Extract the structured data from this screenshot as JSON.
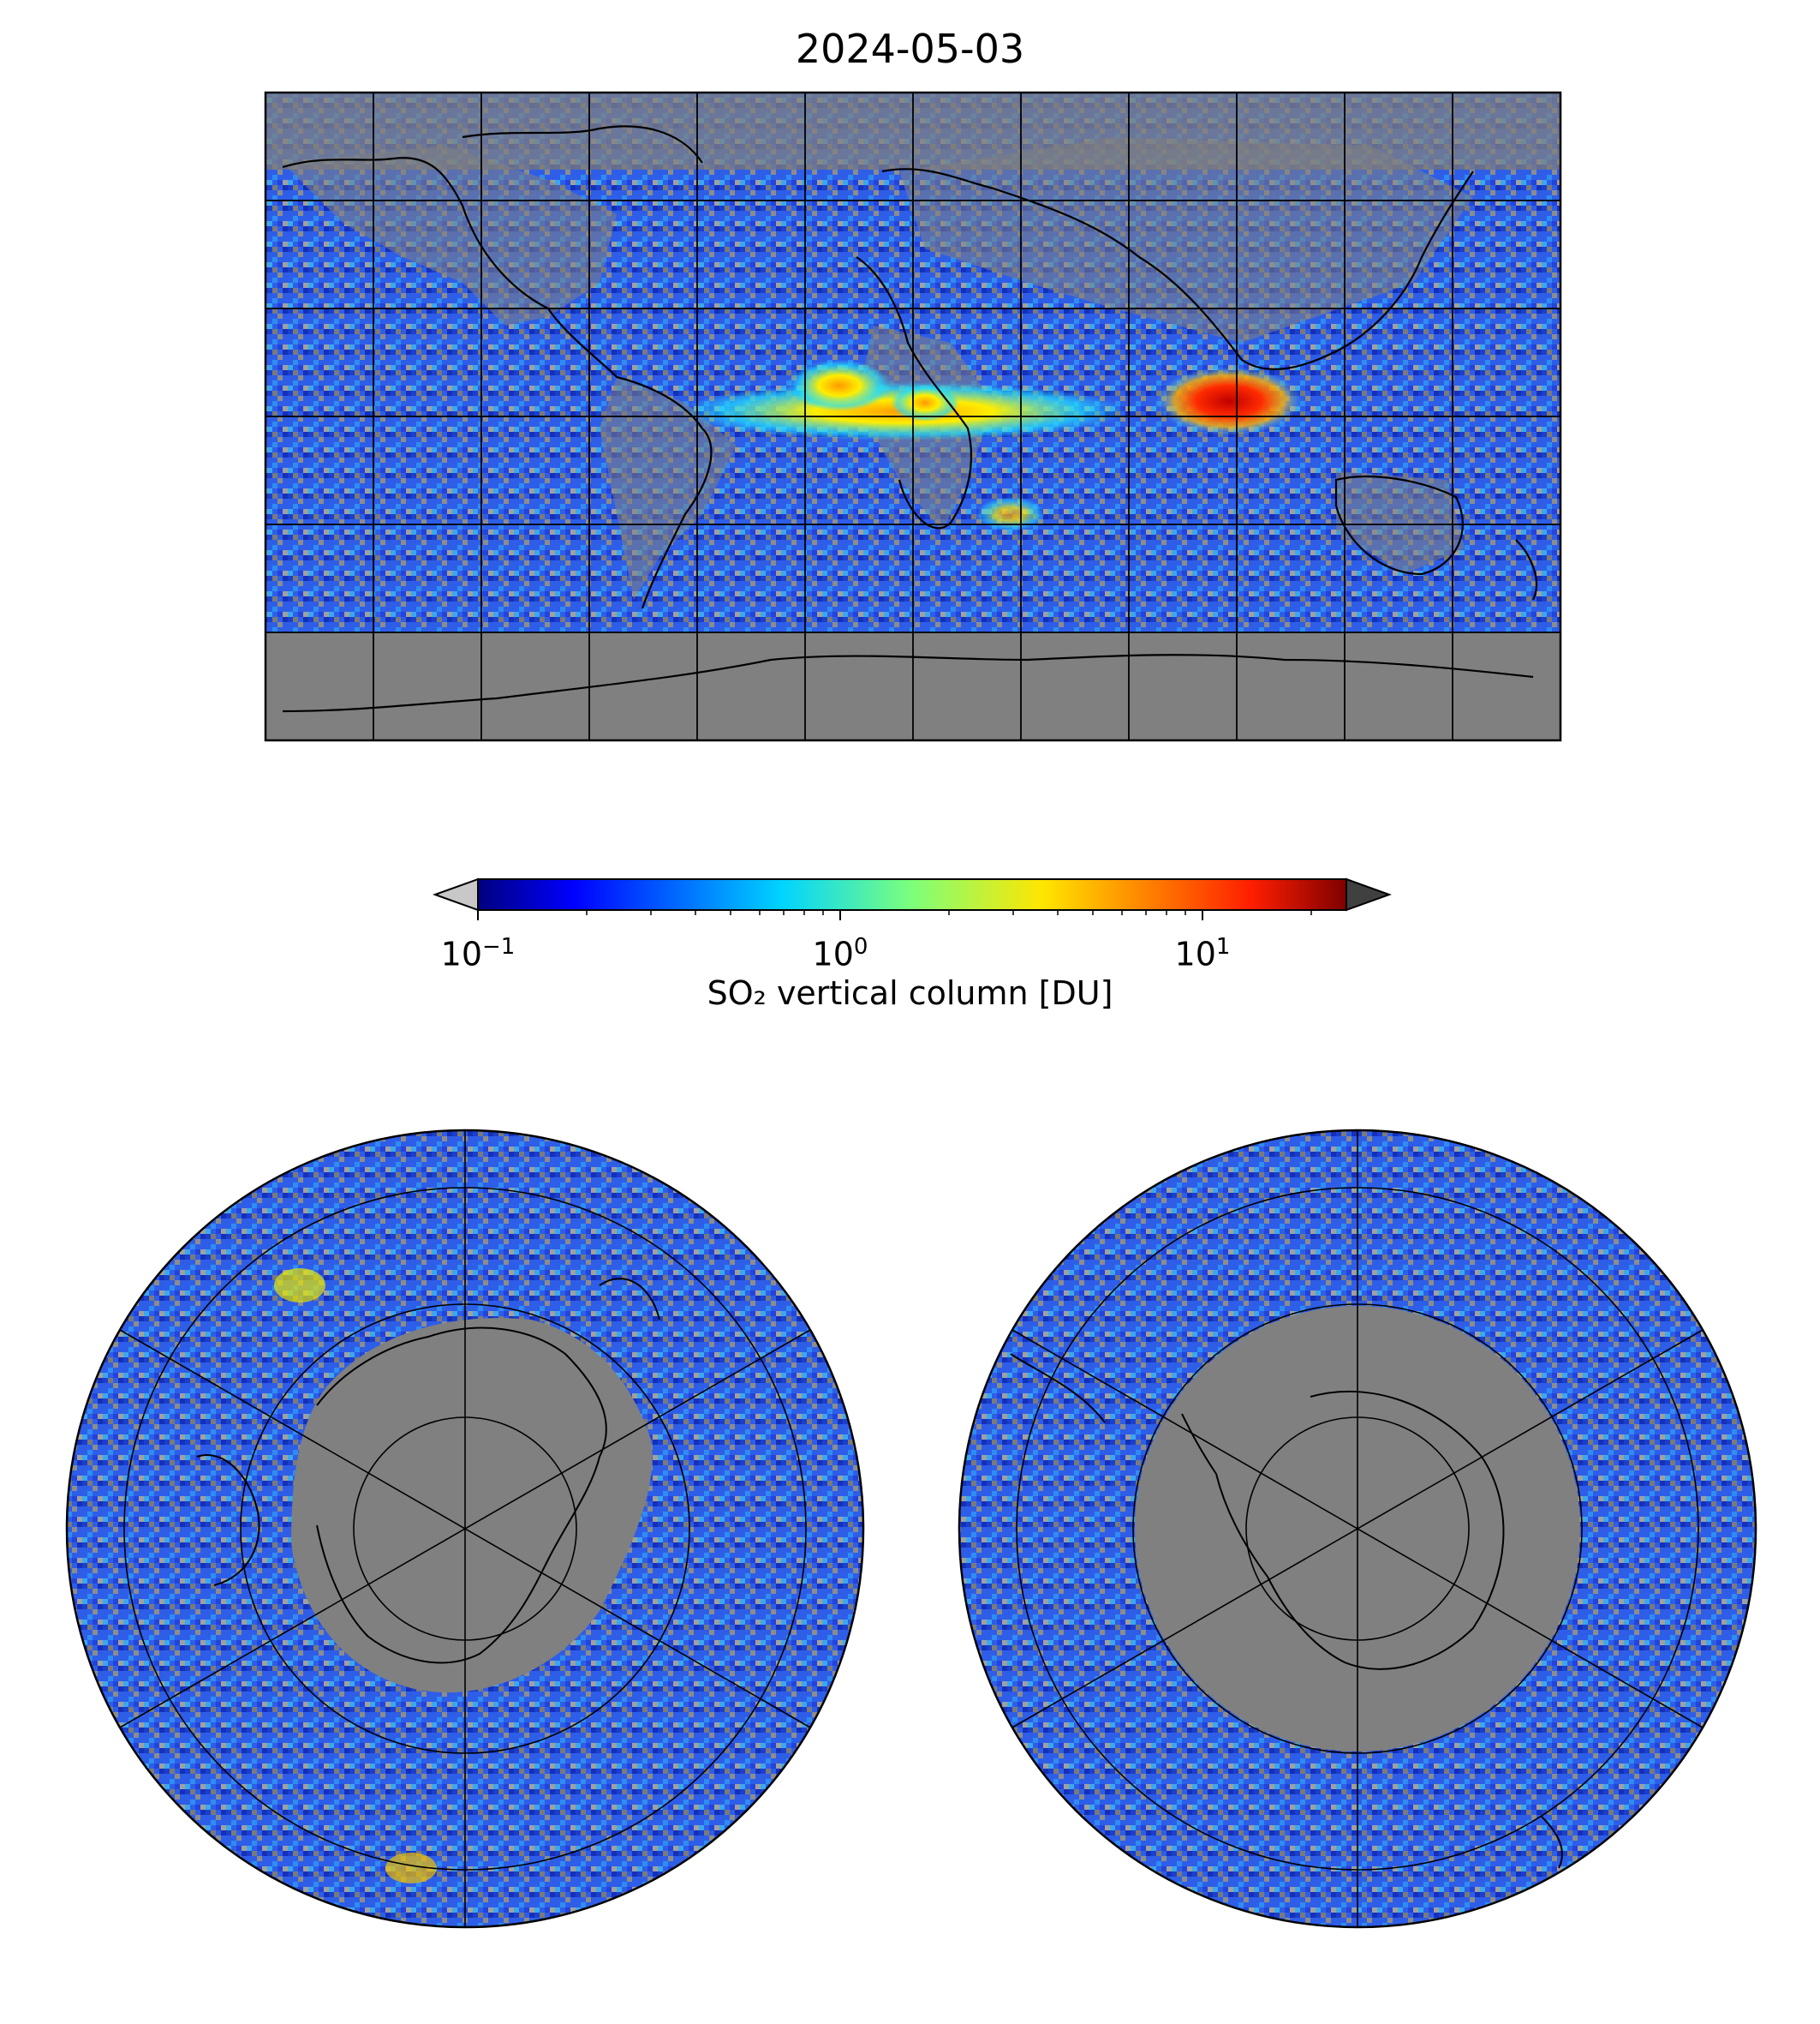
{
  "title": "2024-05-03",
  "colorbar": {
    "label": "SO₂ vertical column [DU]",
    "scale": "log",
    "range": [
      0.1,
      25
    ],
    "colormap": "jet",
    "extend_low_color": "#c8c8c8",
    "extend_high_color": "#404040",
    "ticks": [
      {
        "base": "10",
        "exp": "−1"
      },
      {
        "base": "10",
        "exp": "0"
      },
      {
        "base": "10",
        "exp": "1"
      }
    ]
  },
  "colors": {
    "no_data": "#808080",
    "coastline": "#000000",
    "gridline": "#000000"
  },
  "maps": [
    {
      "name": "global",
      "projection": "plate-carree",
      "gridlines_lon_step_deg": 30,
      "gridlines_lat_step_deg": 30
    },
    {
      "name": "north-polar",
      "projection": "north-polar-stereographic"
    },
    {
      "name": "south-polar",
      "projection": "south-polar-stereographic"
    }
  ],
  "features": [
    {
      "name": "equatorial-atlantic-plume",
      "level_du": 1.5
    },
    {
      "name": "indian-ocean-plume",
      "level_du": 15
    }
  ]
}
